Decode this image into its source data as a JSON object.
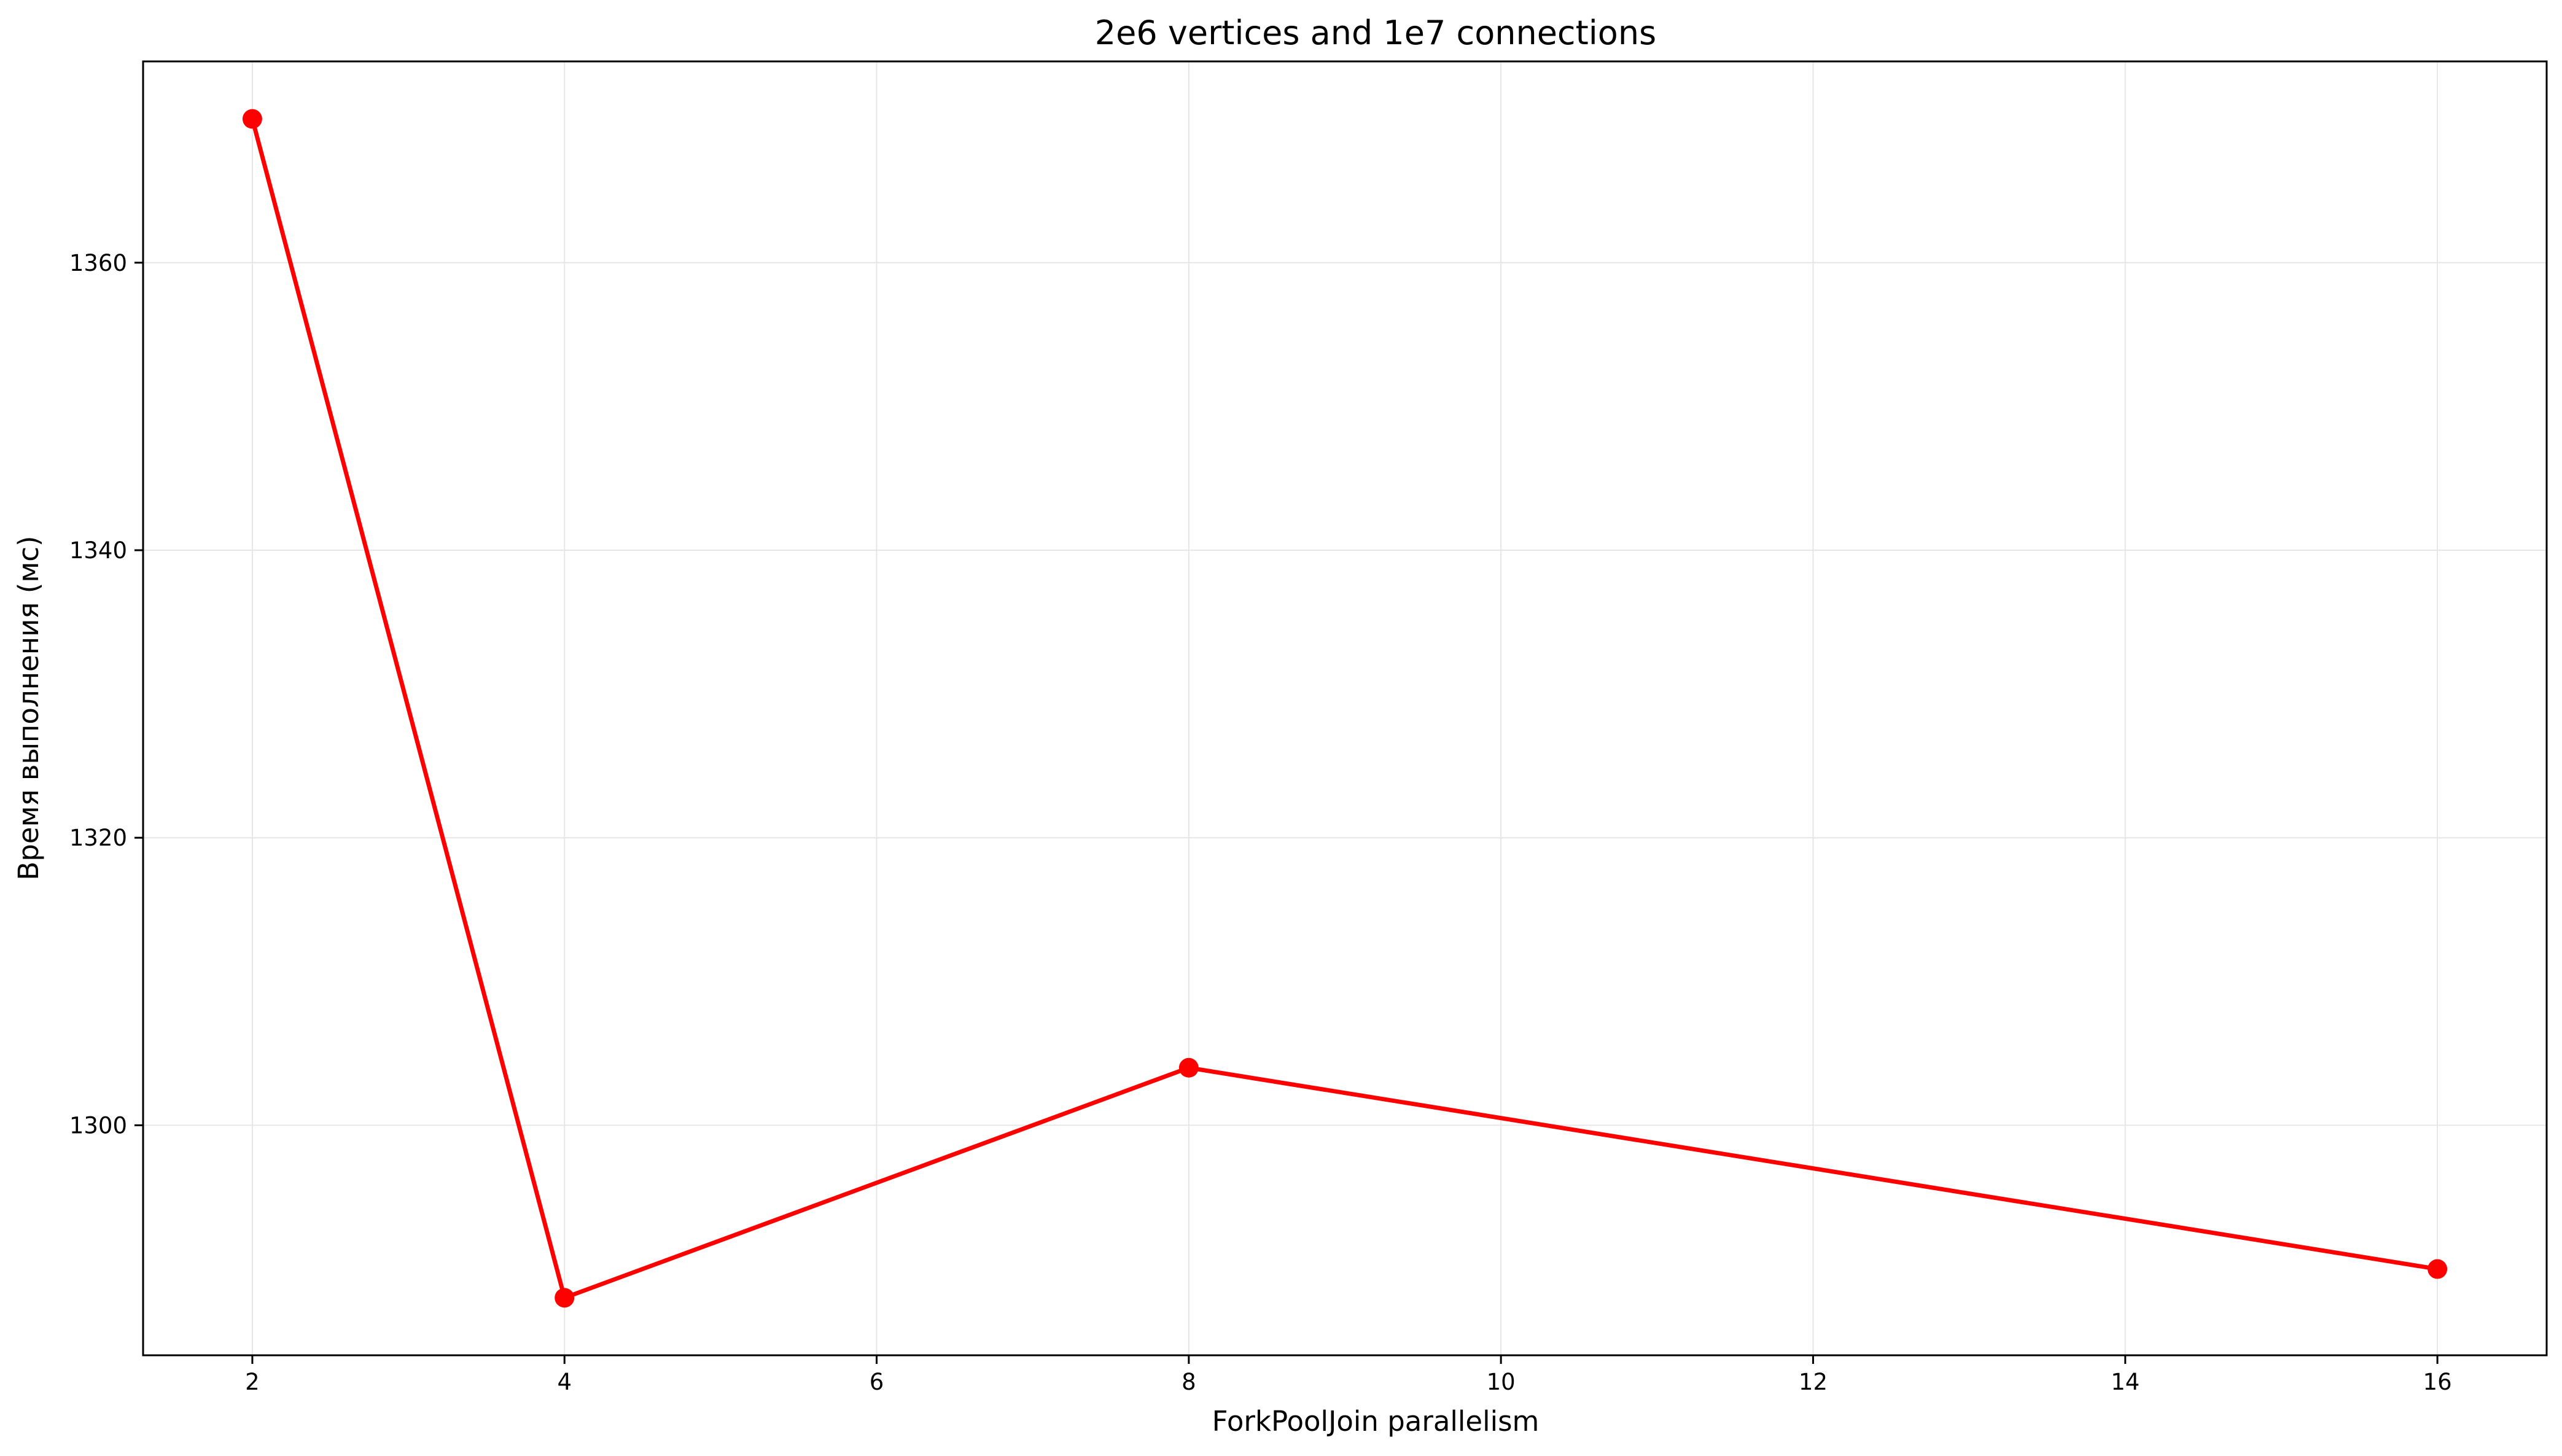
{
  "chart_data": {
    "type": "line",
    "title": "2e6 vertices and 1e7 connections",
    "xlabel": "ForkPoolJoin parallelism",
    "ylabel": "Время выполнения (мс)",
    "xlim": [
      1.3,
      16.7
    ],
    "ylim": [
      1284,
      1374
    ],
    "xticks": [
      2,
      4,
      6,
      8,
      10,
      12,
      14,
      16
    ],
    "yticks": [
      1300,
      1320,
      1340,
      1360
    ],
    "grid": true,
    "legend": "none",
    "series": [
      {
        "color": "#ff0000",
        "marker": "circle",
        "x": [
          2,
          4,
          8,
          16
        ],
        "y": [
          1370,
          1288,
          1304,
          1290
        ]
      }
    ]
  }
}
